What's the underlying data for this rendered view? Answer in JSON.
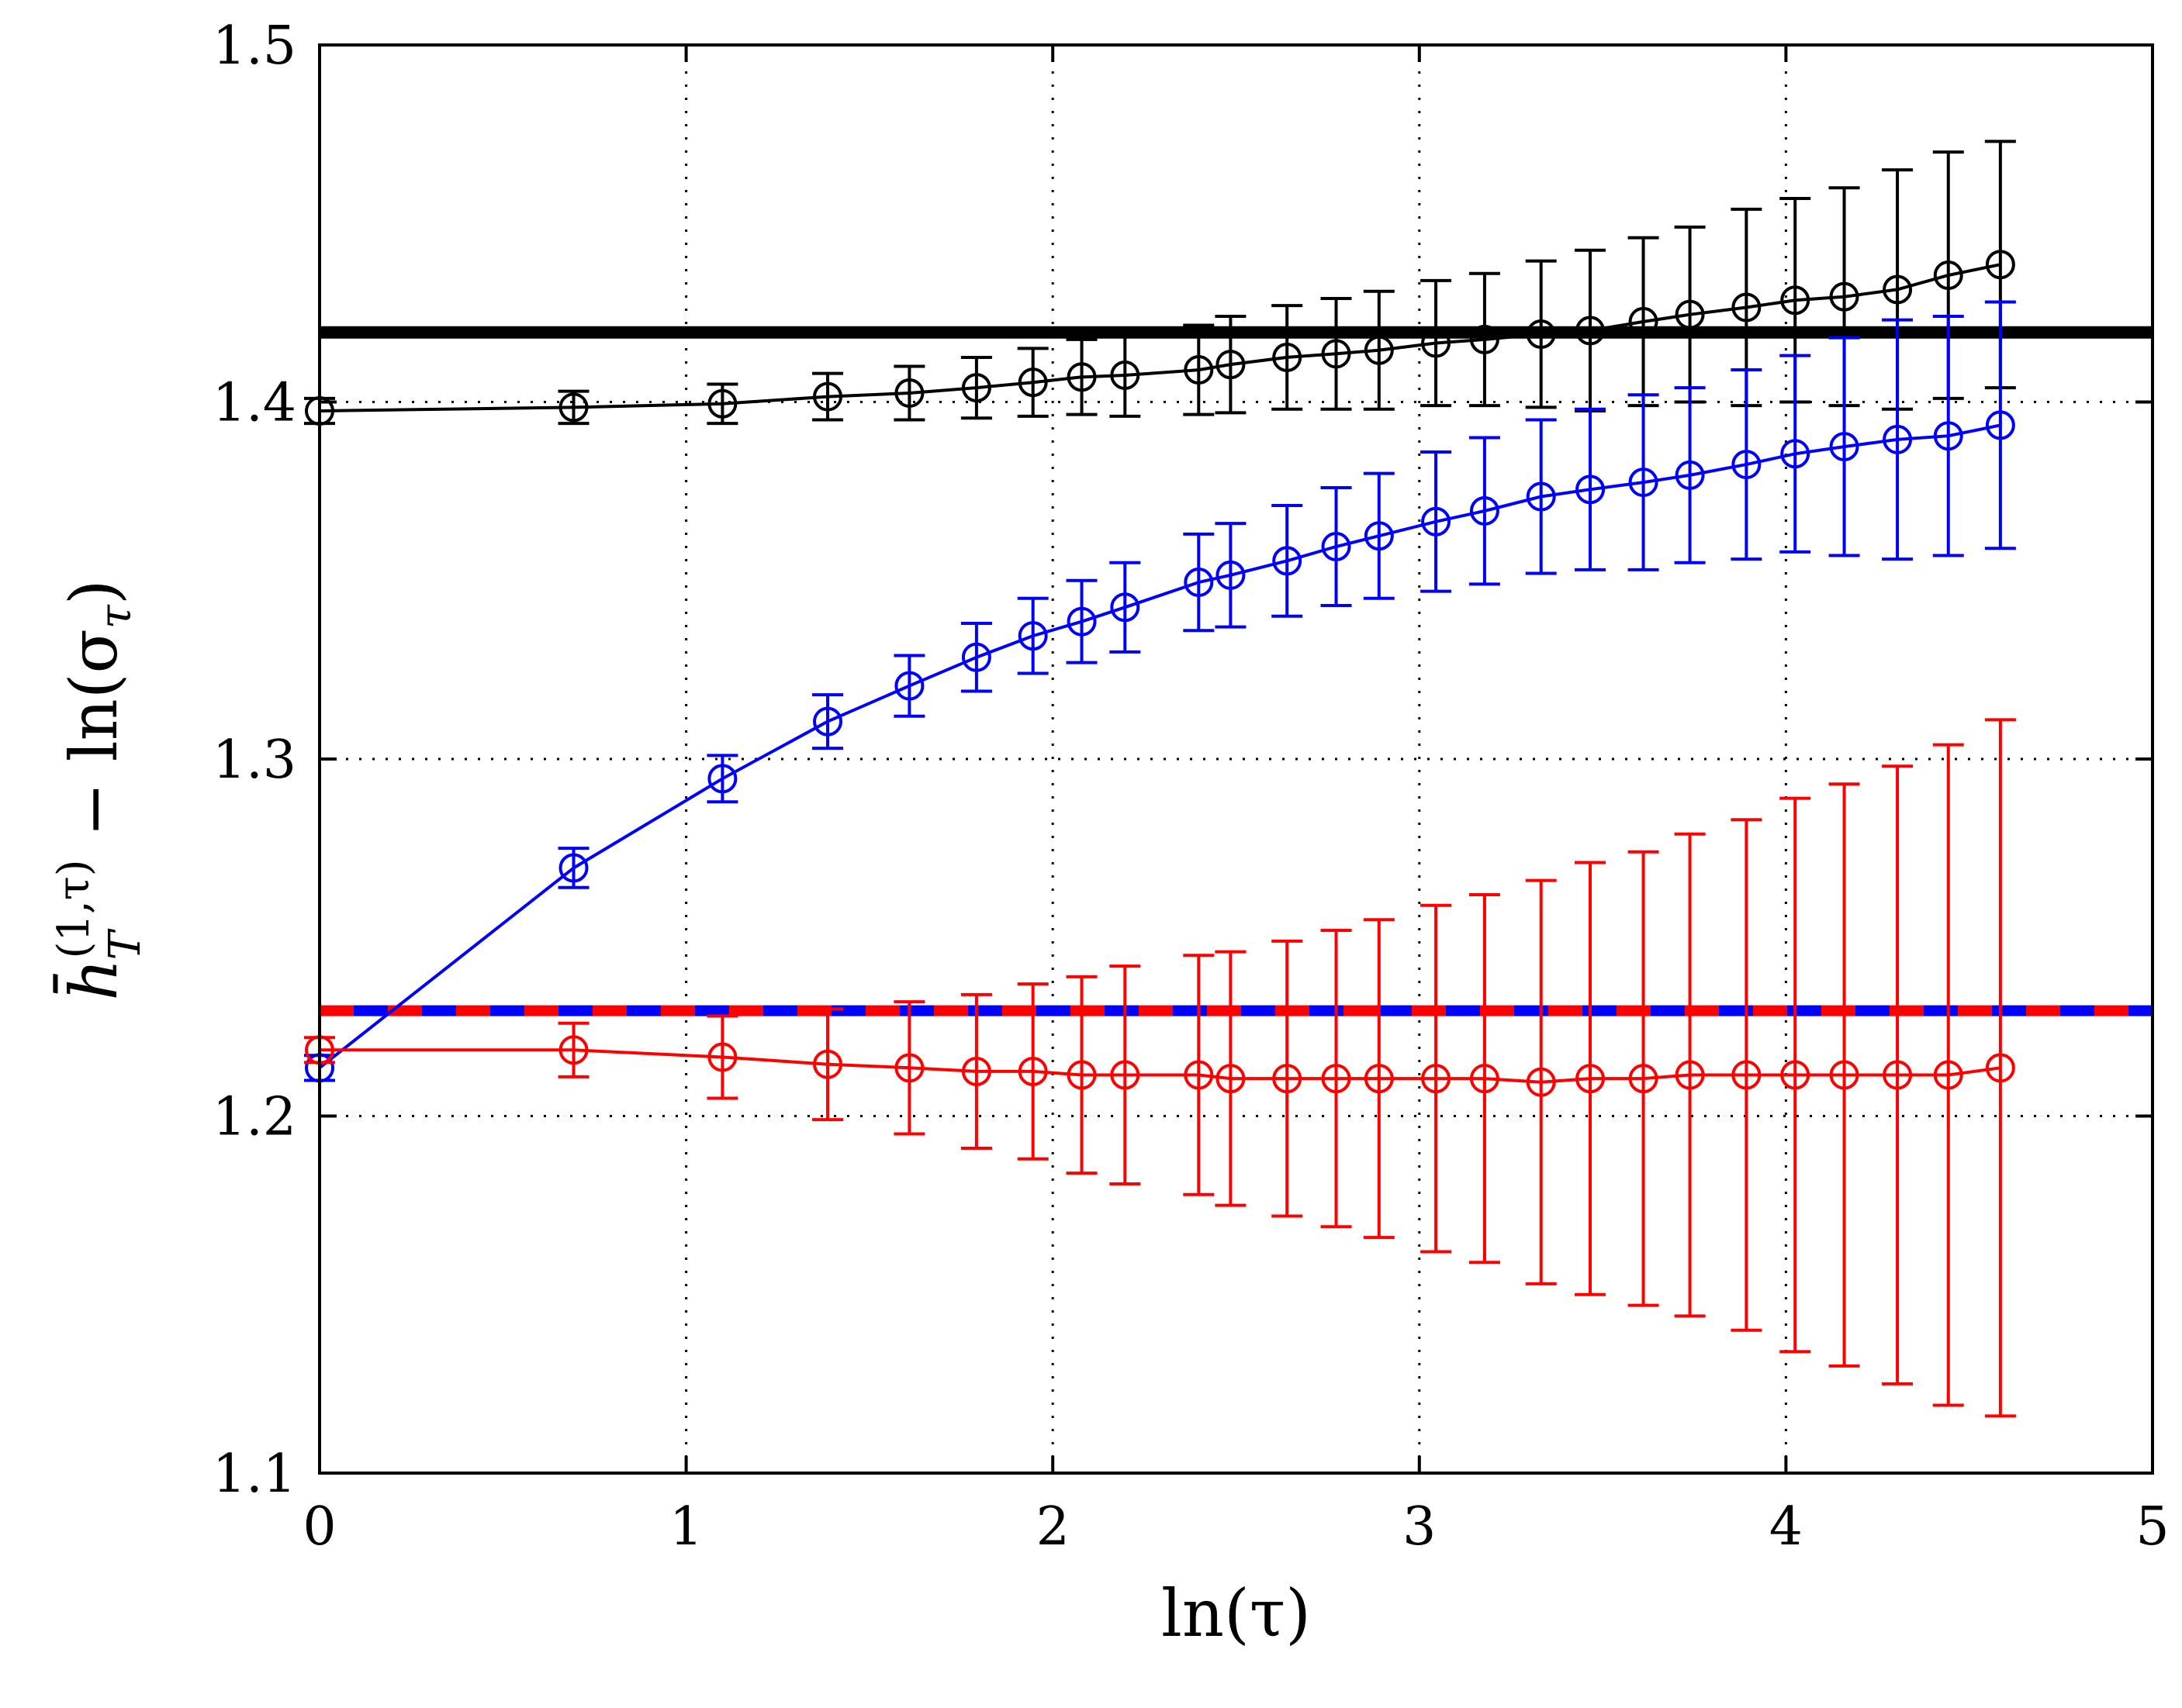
{
  "chart_data": {
    "type": "line",
    "title": "",
    "xlabel": "ln(τ)",
    "ylabel": {
      "main": "h̄",
      "sub": "T",
      "sup": "(1,τ)",
      "rest": " − ln(σ",
      "rest_sub": "τ",
      "close": ")"
    },
    "xlim": [
      0,
      5
    ],
    "ylim": [
      1.1,
      1.5
    ],
    "xticks": [
      0,
      1,
      2,
      3,
      4,
      5
    ],
    "xtick_labels": [
      "0",
      "1",
      "2",
      "3",
      "4",
      "5"
    ],
    "yticks": [
      1.1,
      1.2,
      1.3,
      1.4,
      1.5
    ],
    "ytick_labels": [
      "1.1",
      "1.2",
      "1.3",
      "1.4",
      "1.5"
    ],
    "grid": true,
    "x": [
      0,
      0.693,
      1.099,
      1.386,
      1.609,
      1.792,
      1.946,
      2.079,
      2.197,
      2.398,
      2.485,
      2.639,
      2.773,
      2.89,
      3.045,
      3.178,
      3.332,
      3.466,
      3.611,
      3.738,
      3.892,
      4.025,
      4.159,
      4.304,
      4.443,
      4.585
    ],
    "series": [
      {
        "name": "black",
        "color": "#000000",
        "values": [
          1.3975,
          1.3985,
          1.3995,
          1.4015,
          1.4025,
          1.404,
          1.4055,
          1.407,
          1.4075,
          1.409,
          1.4105,
          1.4125,
          1.4135,
          1.4145,
          1.4165,
          1.4175,
          1.419,
          1.42,
          1.4225,
          1.4245,
          1.4265,
          1.4285,
          1.4295,
          1.4315,
          1.4355,
          1.4385
        ],
        "errors": [
          0.0035,
          0.0045,
          0.0055,
          0.0065,
          0.0075,
          0.0085,
          0.0095,
          0.0105,
          0.0115,
          0.0125,
          0.0135,
          0.0145,
          0.0155,
          0.0165,
          0.0175,
          0.0185,
          0.0205,
          0.0225,
          0.0235,
          0.0245,
          0.0275,
          0.0285,
          0.0305,
          0.0335,
          0.0345,
          0.0345
        ]
      },
      {
        "name": "blue",
        "color": "#0000ff",
        "values": [
          1.2135,
          1.2695,
          1.2945,
          1.3105,
          1.3205,
          1.3285,
          1.3345,
          1.3385,
          1.3425,
          1.3495,
          1.3515,
          1.3555,
          1.3595,
          1.3625,
          1.3665,
          1.3695,
          1.3735,
          1.3755,
          1.3775,
          1.3795,
          1.3825,
          1.3855,
          1.3875,
          1.3895,
          1.3905,
          1.3935
        ],
        "errors": [
          0.0035,
          0.0055,
          0.0065,
          0.0075,
          0.0085,
          0.0095,
          0.0105,
          0.0115,
          0.0125,
          0.0135,
          0.0145,
          0.0155,
          0.0165,
          0.0175,
          0.0195,
          0.0205,
          0.0215,
          0.0225,
          0.0245,
          0.0245,
          0.0265,
          0.0275,
          0.0305,
          0.0335,
          0.0335,
          0.0345
        ]
      },
      {
        "name": "red",
        "color": "#ff0000",
        "values": [
          1.2185,
          1.2185,
          1.2165,
          1.2145,
          1.2135,
          1.2125,
          1.2125,
          1.2115,
          1.2115,
          1.2115,
          1.2105,
          1.2105,
          1.2105,
          1.2105,
          1.2105,
          1.2105,
          1.2095,
          1.2105,
          1.2105,
          1.2115,
          1.2115,
          1.2115,
          1.2115,
          1.2115,
          1.2115,
          1.2135
        ],
        "errors": [
          0.0035,
          0.0075,
          0.0115,
          0.0155,
          0.0185,
          0.0215,
          0.0245,
          0.0275,
          0.0305,
          0.0335,
          0.0355,
          0.0385,
          0.0415,
          0.0445,
          0.0485,
          0.0515,
          0.0565,
          0.0605,
          0.0635,
          0.0675,
          0.0715,
          0.0775,
          0.0815,
          0.0865,
          0.0925,
          0.0975
        ]
      }
    ],
    "reference_lines": [
      {
        "name": "black-reference",
        "y": 1.4195,
        "style": "solid",
        "colors": [
          "#000000"
        ]
      },
      {
        "name": "red-blue-reference",
        "y": 1.2295,
        "style": "dashed",
        "colors": [
          "#ff0000",
          "#0000ff"
        ]
      }
    ]
  }
}
